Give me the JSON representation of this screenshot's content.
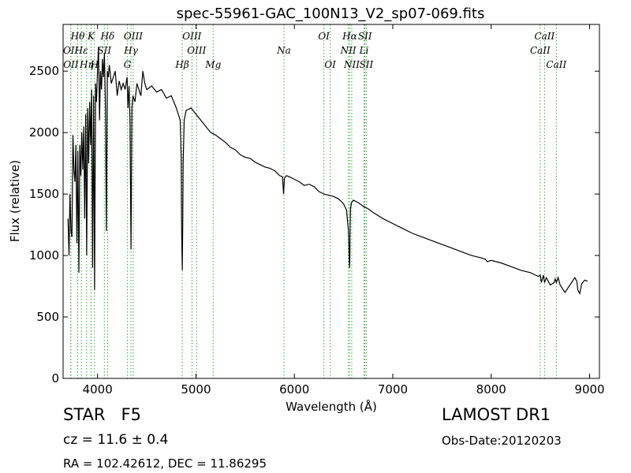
{
  "chart_data": {
    "type": "line",
    "title": "spec-55961-GAC_100N13_V2_sp07-069.fits",
    "xlabel": "Wavelength (Å)",
    "ylabel": "Flux (relative)",
    "xlim": [
      3650,
      9100
    ],
    "ylim": [
      0,
      2880
    ],
    "xticks": [
      4000,
      5000,
      6000,
      7000,
      8000,
      9000
    ],
    "yticks": [
      0,
      500,
      1000,
      1500,
      2000,
      2500
    ],
    "grid": false,
    "line_color": "#000000",
    "marker_color": "#33aa33",
    "series": [
      {
        "x": [
          3700,
          3710,
          3720,
          3730,
          3740,
          3750,
          3760,
          3770,
          3780,
          3790,
          3800,
          3810,
          3820,
          3830,
          3840,
          3850,
          3860,
          3870,
          3880,
          3890,
          3900,
          3910,
          3920,
          3930,
          3940,
          3950,
          3960,
          3970,
          3980,
          3990,
          4000,
          4010,
          4020,
          4030,
          4040,
          4050,
          4060,
          4070,
          4080,
          4090,
          4100,
          4110,
          4120,
          4140,
          4160,
          4180,
          4200,
          4220,
          4240,
          4260,
          4280,
          4300,
          4310,
          4320,
          4330,
          4340,
          4350,
          4360,
          4380,
          4400,
          4420,
          4440,
          4460,
          4480,
          4500,
          4550,
          4600,
          4650,
          4700,
          4750,
          4800,
          4820,
          4840,
          4850,
          4855,
          4861,
          4866,
          4870,
          4880,
          4900,
          4950,
          5000,
          5050,
          5100,
          5150,
          5200,
          5250,
          5300,
          5350,
          5400,
          5450,
          5500,
          5550,
          5600,
          5650,
          5700,
          5750,
          5800,
          5850,
          5880,
          5890,
          5900,
          5920,
          5950,
          6000,
          6050,
          6100,
          6150,
          6200,
          6250,
          6300,
          6350,
          6400,
          6450,
          6500,
          6530,
          6550,
          6560,
          6563,
          6566,
          6570,
          6580,
          6600,
          6650,
          6700,
          6750,
          6800,
          6900,
          7000,
          7100,
          7200,
          7300,
          7400,
          7500,
          7600,
          7700,
          7800,
          7900,
          7940,
          7960,
          8000,
          8100,
          8200,
          8300,
          8400,
          8450,
          8480,
          8498,
          8510,
          8530,
          8542,
          8560,
          8600,
          8640,
          8650,
          8662,
          8680,
          8700,
          8750,
          8800,
          8850,
          8870,
          8880,
          8900,
          8920,
          8950,
          8980
        ],
        "y": [
          1300,
          1000,
          1500,
          1200,
          1150,
          1980,
          1700,
          1600,
          1900,
          1100,
          1850,
          860,
          1900,
          1650,
          2000,
          1700,
          2050,
          1300,
          2150,
          1000,
          2200,
          1750,
          2250,
          1900,
          2350,
          900,
          2300,
          720,
          2400,
          2250,
          2520,
          2700,
          2100,
          2500,
          2350,
          2600,
          2450,
          2650,
          2200,
          1200,
          2500,
          2450,
          2550,
          2400,
          2450,
          2500,
          2300,
          2420,
          2350,
          2400,
          2350,
          2450,
          2200,
          2380,
          2100,
          1050,
          2200,
          2300,
          2250,
          2400,
          2350,
          2300,
          2500,
          2400,
          2350,
          2380,
          2330,
          2350,
          2280,
          2300,
          2200,
          2150,
          2100,
          1800,
          1200,
          880,
          1250,
          1750,
          2100,
          2180,
          2200,
          2150,
          2100,
          2050,
          2000,
          1980,
          1950,
          1920,
          1880,
          1860,
          1820,
          1800,
          1790,
          1760,
          1740,
          1720,
          1710,
          1690,
          1650,
          1640,
          1500,
          1630,
          1650,
          1640,
          1620,
          1600,
          1570,
          1580,
          1560,
          1520,
          1500,
          1490,
          1480,
          1460,
          1420,
          1370,
          1200,
          900,
          950,
          1200,
          1380,
          1430,
          1450,
          1430,
          1400,
          1380,
          1350,
          1300,
          1260,
          1220,
          1180,
          1150,
          1120,
          1090,
          1060,
          1030,
          1000,
          980,
          970,
          950,
          960,
          940,
          910,
          880,
          860,
          840,
          830,
          840,
          780,
          840,
          780,
          820,
          760,
          780,
          810,
          780,
          820,
          760,
          700,
          760,
          820,
          790,
          720,
          690,
          770,
          800,
          790
        ],
        "name": ""
      }
    ],
    "lines": [
      {
        "label": "Hθ",
        "x": 3798,
        "row": 1
      },
      {
        "label": "OII",
        "x": 3727,
        "row": 2
      },
      {
        "label": "OII",
        "x": 3729,
        "row": 3
      },
      {
        "label": "Hε",
        "x": 3835,
        "row": 2
      },
      {
        "label": "Hη",
        "x": 3889,
        "row": 3
      },
      {
        "label": "K",
        "x": 3934,
        "row": 1
      },
      {
        "label": "SII",
        "x": 4069,
        "row": 2
      },
      {
        "label": "H",
        "x": 3969,
        "row": 3
      },
      {
        "label": "Hδ",
        "x": 4102,
        "row": 1
      },
      {
        "label": "OIII",
        "x": 4363,
        "row": 1
      },
      {
        "label": "Hγ",
        "x": 4340,
        "row": 2
      },
      {
        "label": "G",
        "x": 4304,
        "row": 3
      },
      {
        "label": "OIII",
        "x": 4959,
        "row": 1
      },
      {
        "label": "OIII",
        "x": 5007,
        "row": 2
      },
      {
        "label": "Hβ",
        "x": 4861,
        "row": 3
      },
      {
        "label": "Mg",
        "x": 5175,
        "row": 3
      },
      {
        "label": "Na",
        "x": 5894,
        "row": 2
      },
      {
        "label": "OI",
        "x": 6300,
        "row": 1
      },
      {
        "label": "OI",
        "x": 6364,
        "row": 3
      },
      {
        "label": "Hα",
        "x": 6563,
        "row": 1
      },
      {
        "label": "NII",
        "x": 6548,
        "row": 2
      },
      {
        "label": "NII",
        "x": 6583,
        "row": 3
      },
      {
        "label": "SII",
        "x": 6717,
        "row": 1
      },
      {
        "label": "Li",
        "x": 6708,
        "row": 2
      },
      {
        "label": "SII",
        "x": 6731,
        "row": 3
      },
      {
        "label": "CaII",
        "x": 8542,
        "row": 1
      },
      {
        "label": "CaII",
        "x": 8498,
        "row": 2
      },
      {
        "label": "CaII",
        "x": 8662,
        "row": 3
      }
    ]
  },
  "info": {
    "class_label": "STAR",
    "subclass": "F5",
    "cz": "cz = 11.6  ± 0.4",
    "radec": "RA = 102.42612, DEC = 11.86295",
    "survey": "LAMOST DR1",
    "obs_date": "Obs-Date:20120203"
  }
}
